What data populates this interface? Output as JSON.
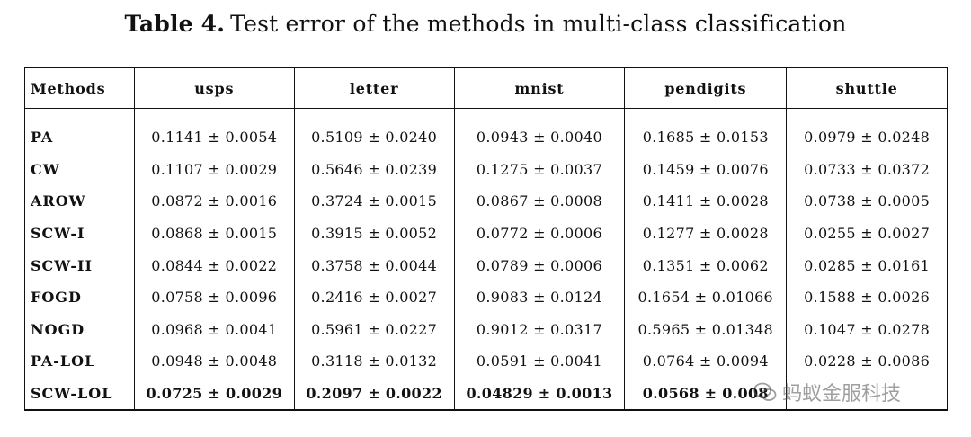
{
  "caption": {
    "label": "Table 4.",
    "text": "Test error of the methods in multi-class classification"
  },
  "table": {
    "headers": [
      "Methods",
      "usps",
      "letter",
      "mnist",
      "pendigits",
      "shuttle"
    ],
    "rows": [
      {
        "method": "PA",
        "values": [
          "0.1141 ± 0.0054",
          "0.5109 ± 0.0240",
          "0.0943 ± 0.0040",
          "0.1685 ± 0.0153",
          "0.0979 ± 0.0248"
        ]
      },
      {
        "method": "CW",
        "values": [
          "0.1107 ± 0.0029",
          "0.5646 ± 0.0239",
          "0.1275 ± 0.0037",
          "0.1459 ± 0.0076",
          "0.0733 ± 0.0372"
        ]
      },
      {
        "method": "AROW",
        "values": [
          "0.0872 ± 0.0016",
          "0.3724 ± 0.0015",
          "0.0867 ± 0.0008",
          "0.1411 ± 0.0028",
          "0.0738 ± 0.0005"
        ]
      },
      {
        "method": "SCW-I",
        "values": [
          "0.0868 ± 0.0015",
          "0.3915 ± 0.0052",
          "0.0772 ± 0.0006",
          "0.1277 ± 0.0028",
          "0.0255 ± 0.0027"
        ]
      },
      {
        "method": "SCW-II",
        "values": [
          "0.0844 ± 0.0022",
          "0.3758 ± 0.0044",
          "0.0789 ± 0.0006",
          "0.1351 ± 0.0062",
          "0.0285 ± 0.0161"
        ]
      },
      {
        "method": "FOGD",
        "values": [
          "0.0758 ± 0.0096",
          "0.2416 ± 0.0027",
          "0.9083 ± 0.0124",
          "0.1654 ± 0.01066",
          "0.1588 ± 0.0026"
        ]
      },
      {
        "method": "NOGD",
        "values": [
          "0.0968 ± 0.0041",
          "0.5961 ± 0.0227",
          "0.9012 ± 0.0317",
          "0.5965 ± 0.01348",
          "0.1047 ± 0.0278"
        ]
      },
      {
        "method": "PA-LOL",
        "values": [
          "0.0948 ± 0.0048",
          "0.3118 ± 0.0132",
          "0.0591 ± 0.0041",
          "0.0764 ± 0.0094",
          "0.0228 ± 0.0086"
        ]
      },
      {
        "method": "SCW-LOL",
        "values": [
          "0.0725 ± 0.0029",
          "0.2097 ± 0.0022",
          "0.04829 ± 0.0013",
          "0.0568 ± 0.008",
          ""
        ]
      }
    ]
  },
  "watermark": {
    "text": "蚂蚁金服科技",
    "icon": "wechat-logo-icon"
  }
}
